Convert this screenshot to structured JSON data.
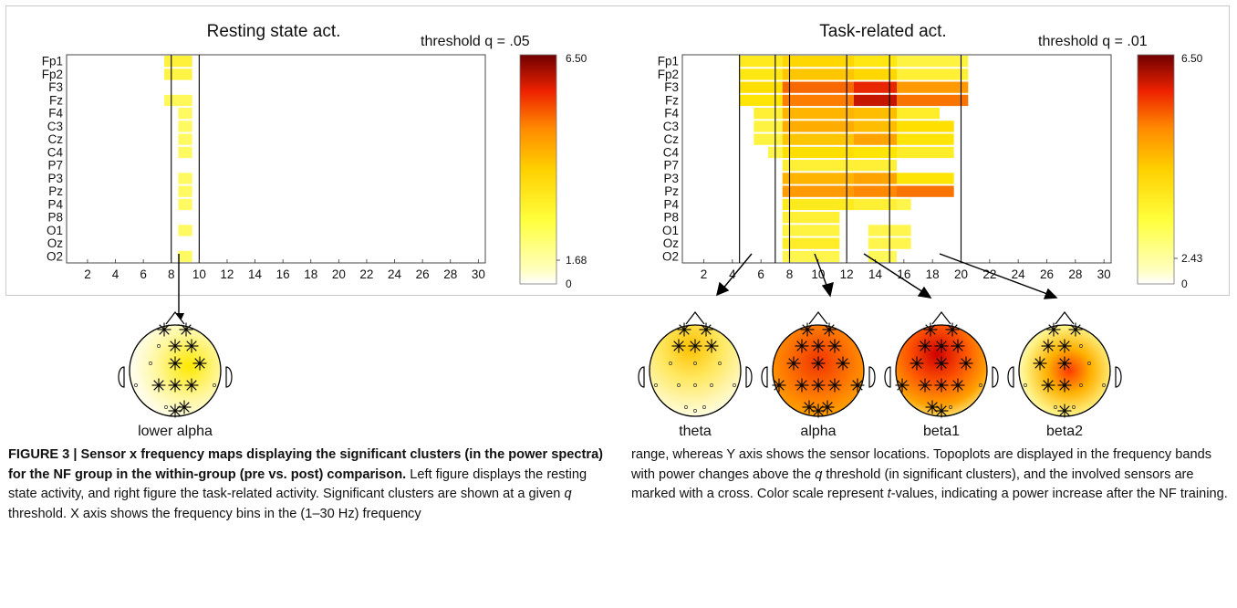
{
  "panels": [
    {
      "title": "Resting state act.",
      "threshold_label": "threshold q = .05",
      "colorbar": {
        "max": "6.50",
        "threshold": "1.68",
        "min": "0"
      },
      "band_lines_hz": [
        8,
        10
      ],
      "topoplots": [
        {
          "label": "lower alpha"
        }
      ]
    },
    {
      "title": "Task-related act.",
      "threshold_label": "threshold q = .01",
      "colorbar": {
        "max": "6.50",
        "threshold": "2.43",
        "min": "0"
      },
      "band_lines_hz": [
        4.5,
        7,
        8,
        12,
        15,
        20
      ],
      "topoplots": [
        {
          "label": "theta"
        },
        {
          "label": "alpha"
        },
        {
          "label": "beta1"
        },
        {
          "label": "beta2"
        }
      ]
    }
  ],
  "chart_data": [
    {
      "type": "heatmap",
      "title": "Resting state act.",
      "x_ticks": [
        2,
        4,
        6,
        8,
        10,
        12,
        14,
        16,
        18,
        20,
        22,
        24,
        26,
        28,
        30
      ],
      "xlim": [
        1,
        30
      ],
      "y_sensors": [
        "Fp1",
        "Fp2",
        "F3",
        "Fz",
        "F4",
        "C3",
        "Cz",
        "C4",
        "P7",
        "P3",
        "Pz",
        "P4",
        "P8",
        "O1",
        "Oz",
        "O2"
      ],
      "colorscale": {
        "min": 0,
        "threshold": 1.68,
        "max": 6.5
      },
      "cells": [
        {
          "sensor": "Fp1",
          "hz": [
            7.5,
            9.5
          ],
          "t": 2.3
        },
        {
          "sensor": "Fp2",
          "hz": [
            7.5,
            9.5
          ],
          "t": 2.2
        },
        {
          "sensor": "Fz",
          "hz": [
            7.5,
            9.5
          ],
          "t": 2.0
        },
        {
          "sensor": "F4",
          "hz": [
            8.5,
            9.5
          ],
          "t": 1.9
        },
        {
          "sensor": "C3",
          "hz": [
            8.5,
            9.5
          ],
          "t": 1.9
        },
        {
          "sensor": "Cz",
          "hz": [
            8.5,
            9.5
          ],
          "t": 1.9
        },
        {
          "sensor": "C4",
          "hz": [
            8.5,
            9.5
          ],
          "t": 1.9
        },
        {
          "sensor": "P3",
          "hz": [
            8.5,
            9.5
          ],
          "t": 1.9
        },
        {
          "sensor": "Pz",
          "hz": [
            8.5,
            9.5
          ],
          "t": 1.9
        },
        {
          "sensor": "P4",
          "hz": [
            8.5,
            9.5
          ],
          "t": 1.9
        },
        {
          "sensor": "O1",
          "hz": [
            8.5,
            9.5
          ],
          "t": 1.9
        },
        {
          "sensor": "O2",
          "hz": [
            8.5,
            9.5
          ],
          "t": 1.9
        }
      ]
    },
    {
      "type": "heatmap",
      "title": "Task-related act.",
      "x_ticks": [
        2,
        4,
        6,
        8,
        10,
        12,
        14,
        16,
        18,
        20,
        22,
        24,
        26,
        28,
        30
      ],
      "xlim": [
        1,
        30
      ],
      "y_sensors": [
        "Fp1",
        "Fp2",
        "F3",
        "Fz",
        "F4",
        "C3",
        "Cz",
        "C4",
        "P7",
        "P3",
        "Pz",
        "P4",
        "P8",
        "O1",
        "Oz",
        "O2"
      ],
      "colorscale": {
        "min": 0,
        "threshold": 2.43,
        "max": 6.5
      },
      "cells": [
        {
          "sensor": "Fp1",
          "hz": [
            4.5,
            7.5
          ],
          "t": 3.2
        },
        {
          "sensor": "Fp1",
          "hz": [
            7.5,
            12.5
          ],
          "t": 3.6
        },
        {
          "sensor": "Fp1",
          "hz": [
            12.5,
            15.5
          ],
          "t": 3.3
        },
        {
          "sensor": "Fp1",
          "hz": [
            15.5,
            20.5
          ],
          "t": 2.9
        },
        {
          "sensor": "Fp2",
          "hz": [
            4.5,
            7.5
          ],
          "t": 3.3
        },
        {
          "sensor": "Fp2",
          "hz": [
            7.5,
            12.5
          ],
          "t": 3.8
        },
        {
          "sensor": "Fp2",
          "hz": [
            12.5,
            15.5
          ],
          "t": 3.6
        },
        {
          "sensor": "Fp2",
          "hz": [
            15.5,
            20.5
          ],
          "t": 3.0
        },
        {
          "sensor": "F3",
          "hz": [
            4.5,
            7.5
          ],
          "t": 3.5
        },
        {
          "sensor": "F3",
          "hz": [
            7.5,
            12.5
          ],
          "t": 4.8
        },
        {
          "sensor": "F3",
          "hz": [
            12.5,
            15.5
          ],
          "t": 5.4
        },
        {
          "sensor": "F3",
          "hz": [
            15.5,
            20.5
          ],
          "t": 4.3
        },
        {
          "sensor": "Fz",
          "hz": [
            4.5,
            7.5
          ],
          "t": 3.4
        },
        {
          "sensor": "Fz",
          "hz": [
            7.5,
            12.5
          ],
          "t": 4.6
        },
        {
          "sensor": "Fz",
          "hz": [
            12.5,
            15.5
          ],
          "t": 5.8
        },
        {
          "sensor": "Fz",
          "hz": [
            15.5,
            20.5
          ],
          "t": 4.7
        },
        {
          "sensor": "F4",
          "hz": [
            5.5,
            7.5
          ],
          "t": 3.0
        },
        {
          "sensor": "F4",
          "hz": [
            7.5,
            12.5
          ],
          "t": 4.0
        },
        {
          "sensor": "F4",
          "hz": [
            12.5,
            15.5
          ],
          "t": 3.9
        },
        {
          "sensor": "F4",
          "hz": [
            15.5,
            18.5
          ],
          "t": 3.1
        },
        {
          "sensor": "C3",
          "hz": [
            5.5,
            7.5
          ],
          "t": 2.9
        },
        {
          "sensor": "C3",
          "hz": [
            7.5,
            12.5
          ],
          "t": 4.1
        },
        {
          "sensor": "C3",
          "hz": [
            12.5,
            15.5
          ],
          "t": 3.9
        },
        {
          "sensor": "C3",
          "hz": [
            15.5,
            19.5
          ],
          "t": 3.5
        },
        {
          "sensor": "Cz",
          "hz": [
            5.5,
            7.5
          ],
          "t": 2.9
        },
        {
          "sensor": "Cz",
          "hz": [
            7.5,
            12.5
          ],
          "t": 3.8
        },
        {
          "sensor": "Cz",
          "hz": [
            12.5,
            15.5
          ],
          "t": 4.2
        },
        {
          "sensor": "Cz",
          "hz": [
            15.5,
            19.5
          ],
          "t": 3.4
        },
        {
          "sensor": "C4",
          "hz": [
            6.5,
            7.5
          ],
          "t": 2.8
        },
        {
          "sensor": "C4",
          "hz": [
            7.5,
            12.5
          ],
          "t": 3.5
        },
        {
          "sensor": "C4",
          "hz": [
            12.5,
            15.5
          ],
          "t": 3.4
        },
        {
          "sensor": "C4",
          "hz": [
            15.5,
            19.5
          ],
          "t": 3.1
        },
        {
          "sensor": "P7",
          "hz": [
            7.5,
            12.5
          ],
          "t": 3.0
        },
        {
          "sensor": "P7",
          "hz": [
            12.5,
            15.5
          ],
          "t": 3.0
        },
        {
          "sensor": "P3",
          "hz": [
            7.5,
            12.5
          ],
          "t": 4.0
        },
        {
          "sensor": "P3",
          "hz": [
            12.5,
            15.5
          ],
          "t": 4.2
        },
        {
          "sensor": "P3",
          "hz": [
            15.5,
            19.5
          ],
          "t": 3.4
        },
        {
          "sensor": "Pz",
          "hz": [
            7.5,
            12.5
          ],
          "t": 4.3
        },
        {
          "sensor": "Pz",
          "hz": [
            12.5,
            15.5
          ],
          "t": 4.5
        },
        {
          "sensor": "Pz",
          "hz": [
            15.5,
            19.5
          ],
          "t": 4.7
        },
        {
          "sensor": "P4",
          "hz": [
            7.5,
            12.5
          ],
          "t": 3.2
        },
        {
          "sensor": "P4",
          "hz": [
            12.5,
            15.5
          ],
          "t": 3.0
        },
        {
          "sensor": "P4",
          "hz": [
            15.5,
            16.5
          ],
          "t": 2.8
        },
        {
          "sensor": "P8",
          "hz": [
            7.5,
            11.5
          ],
          "t": 3.0
        },
        {
          "sensor": "O1",
          "hz": [
            7.5,
            11.5
          ],
          "t": 2.9
        },
        {
          "sensor": "O1",
          "hz": [
            13.5,
            16.5
          ],
          "t": 2.8
        },
        {
          "sensor": "Oz",
          "hz": [
            7.5,
            11.5
          ],
          "t": 3.1
        },
        {
          "sensor": "Oz",
          "hz": [
            13.5,
            16.5
          ],
          "t": 2.8
        },
        {
          "sensor": "O2",
          "hz": [
            7.5,
            11.5
          ],
          "t": 2.8
        },
        {
          "sensor": "O2",
          "hz": [
            13.5,
            15.5
          ],
          "t": 2.7
        }
      ]
    }
  ],
  "caption": {
    "left": {
      "prefix": "FIGURE 3 | Sensor x frequency maps displaying the significant clusters (in the power spectra) for the NF group in the within-group (pre vs. post) comparison.",
      "text1": " Left figure displays the resting state activity, and right figure the task-related activity. Significant clusters are shown at a given ",
      "q": "q",
      "text2": " threshold. X axis shows the frequency bins in the (1–30 Hz) frequency"
    },
    "right": {
      "text1": "range, whereas Y axis shows the sensor locations. Topoplots are displayed in the frequency bands with power changes above the ",
      "q": "q",
      "text2": " threshold (in significant clusters), and the involved sensors are marked with a cross. Color scale represent ",
      "t": "t",
      "text3": "-values, indicating a power increase after the NF training."
    }
  }
}
